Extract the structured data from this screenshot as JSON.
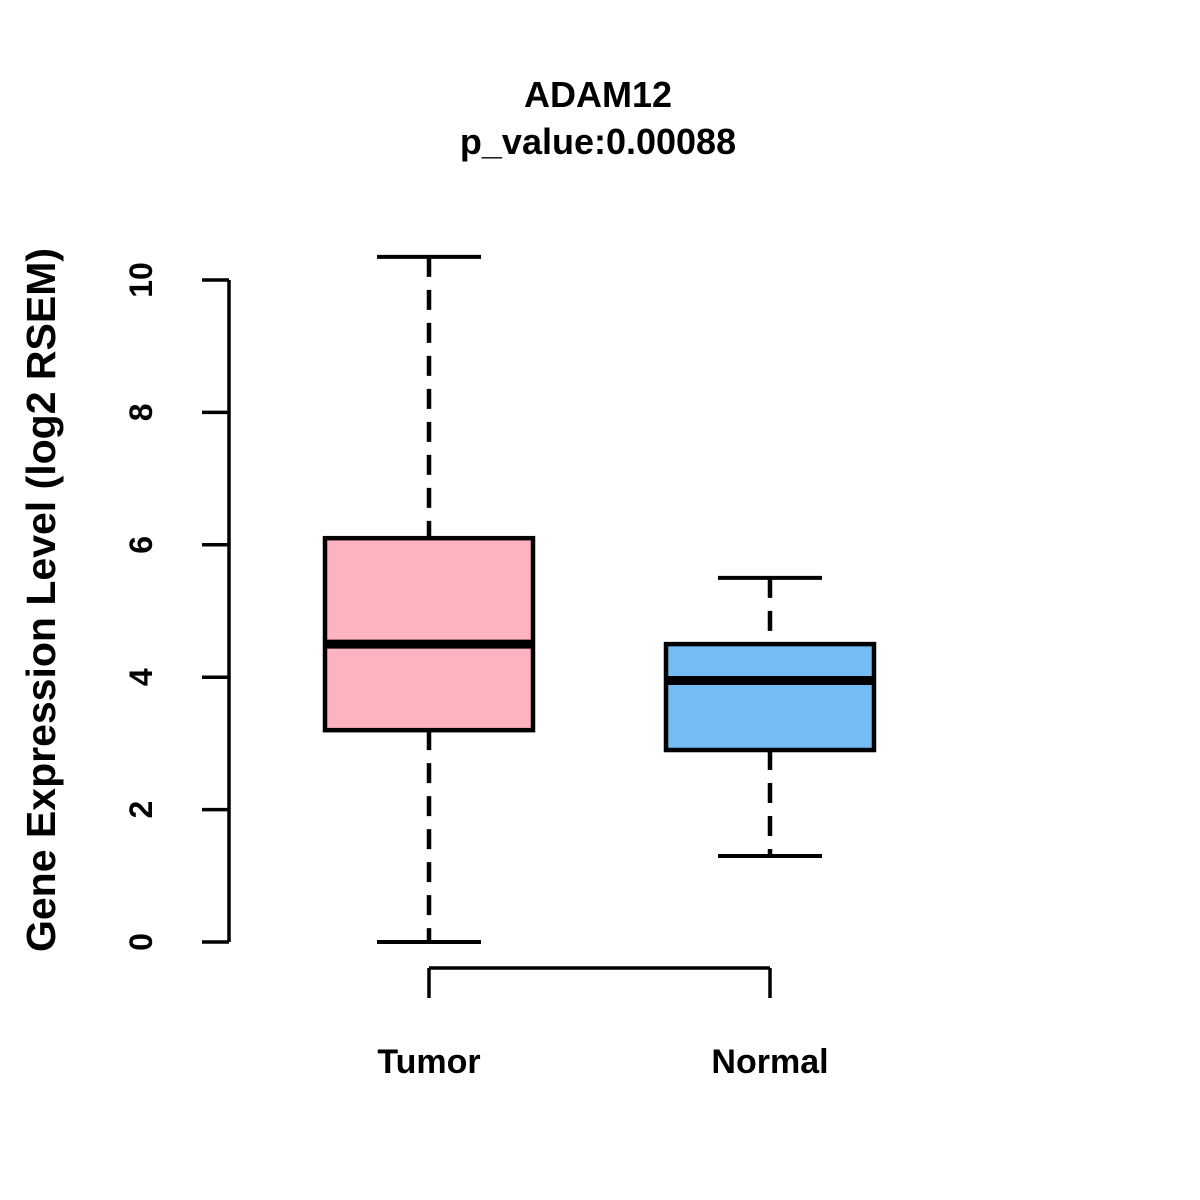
{
  "chart_data": {
    "type": "boxplot",
    "title": "ADAM12",
    "subtitle": "p_value:0.00088",
    "ylabel": "Gene Expression Level (log2 RSEM)",
    "xlabel": "",
    "categories": [
      "Tumor",
      "Normal"
    ],
    "yticks": [
      0,
      2,
      4,
      6,
      8,
      10
    ],
    "ylim": [
      0,
      10.4
    ],
    "grid": false,
    "legend": "none",
    "series": [
      {
        "name": "Tumor",
        "whisker_low": 0.0,
        "q1": 3.2,
        "median": 4.5,
        "q3": 6.1,
        "whisker_high": 10.35,
        "fill_color": "#FFB3C1"
      },
      {
        "name": "Normal",
        "whisker_low": 1.3,
        "q1": 2.9,
        "median": 3.95,
        "q3": 4.5,
        "whisker_high": 5.5,
        "fill_color": "#73BDF4"
      }
    ],
    "stroke_color": "#000000",
    "background_color": "#FFFFFF"
  }
}
